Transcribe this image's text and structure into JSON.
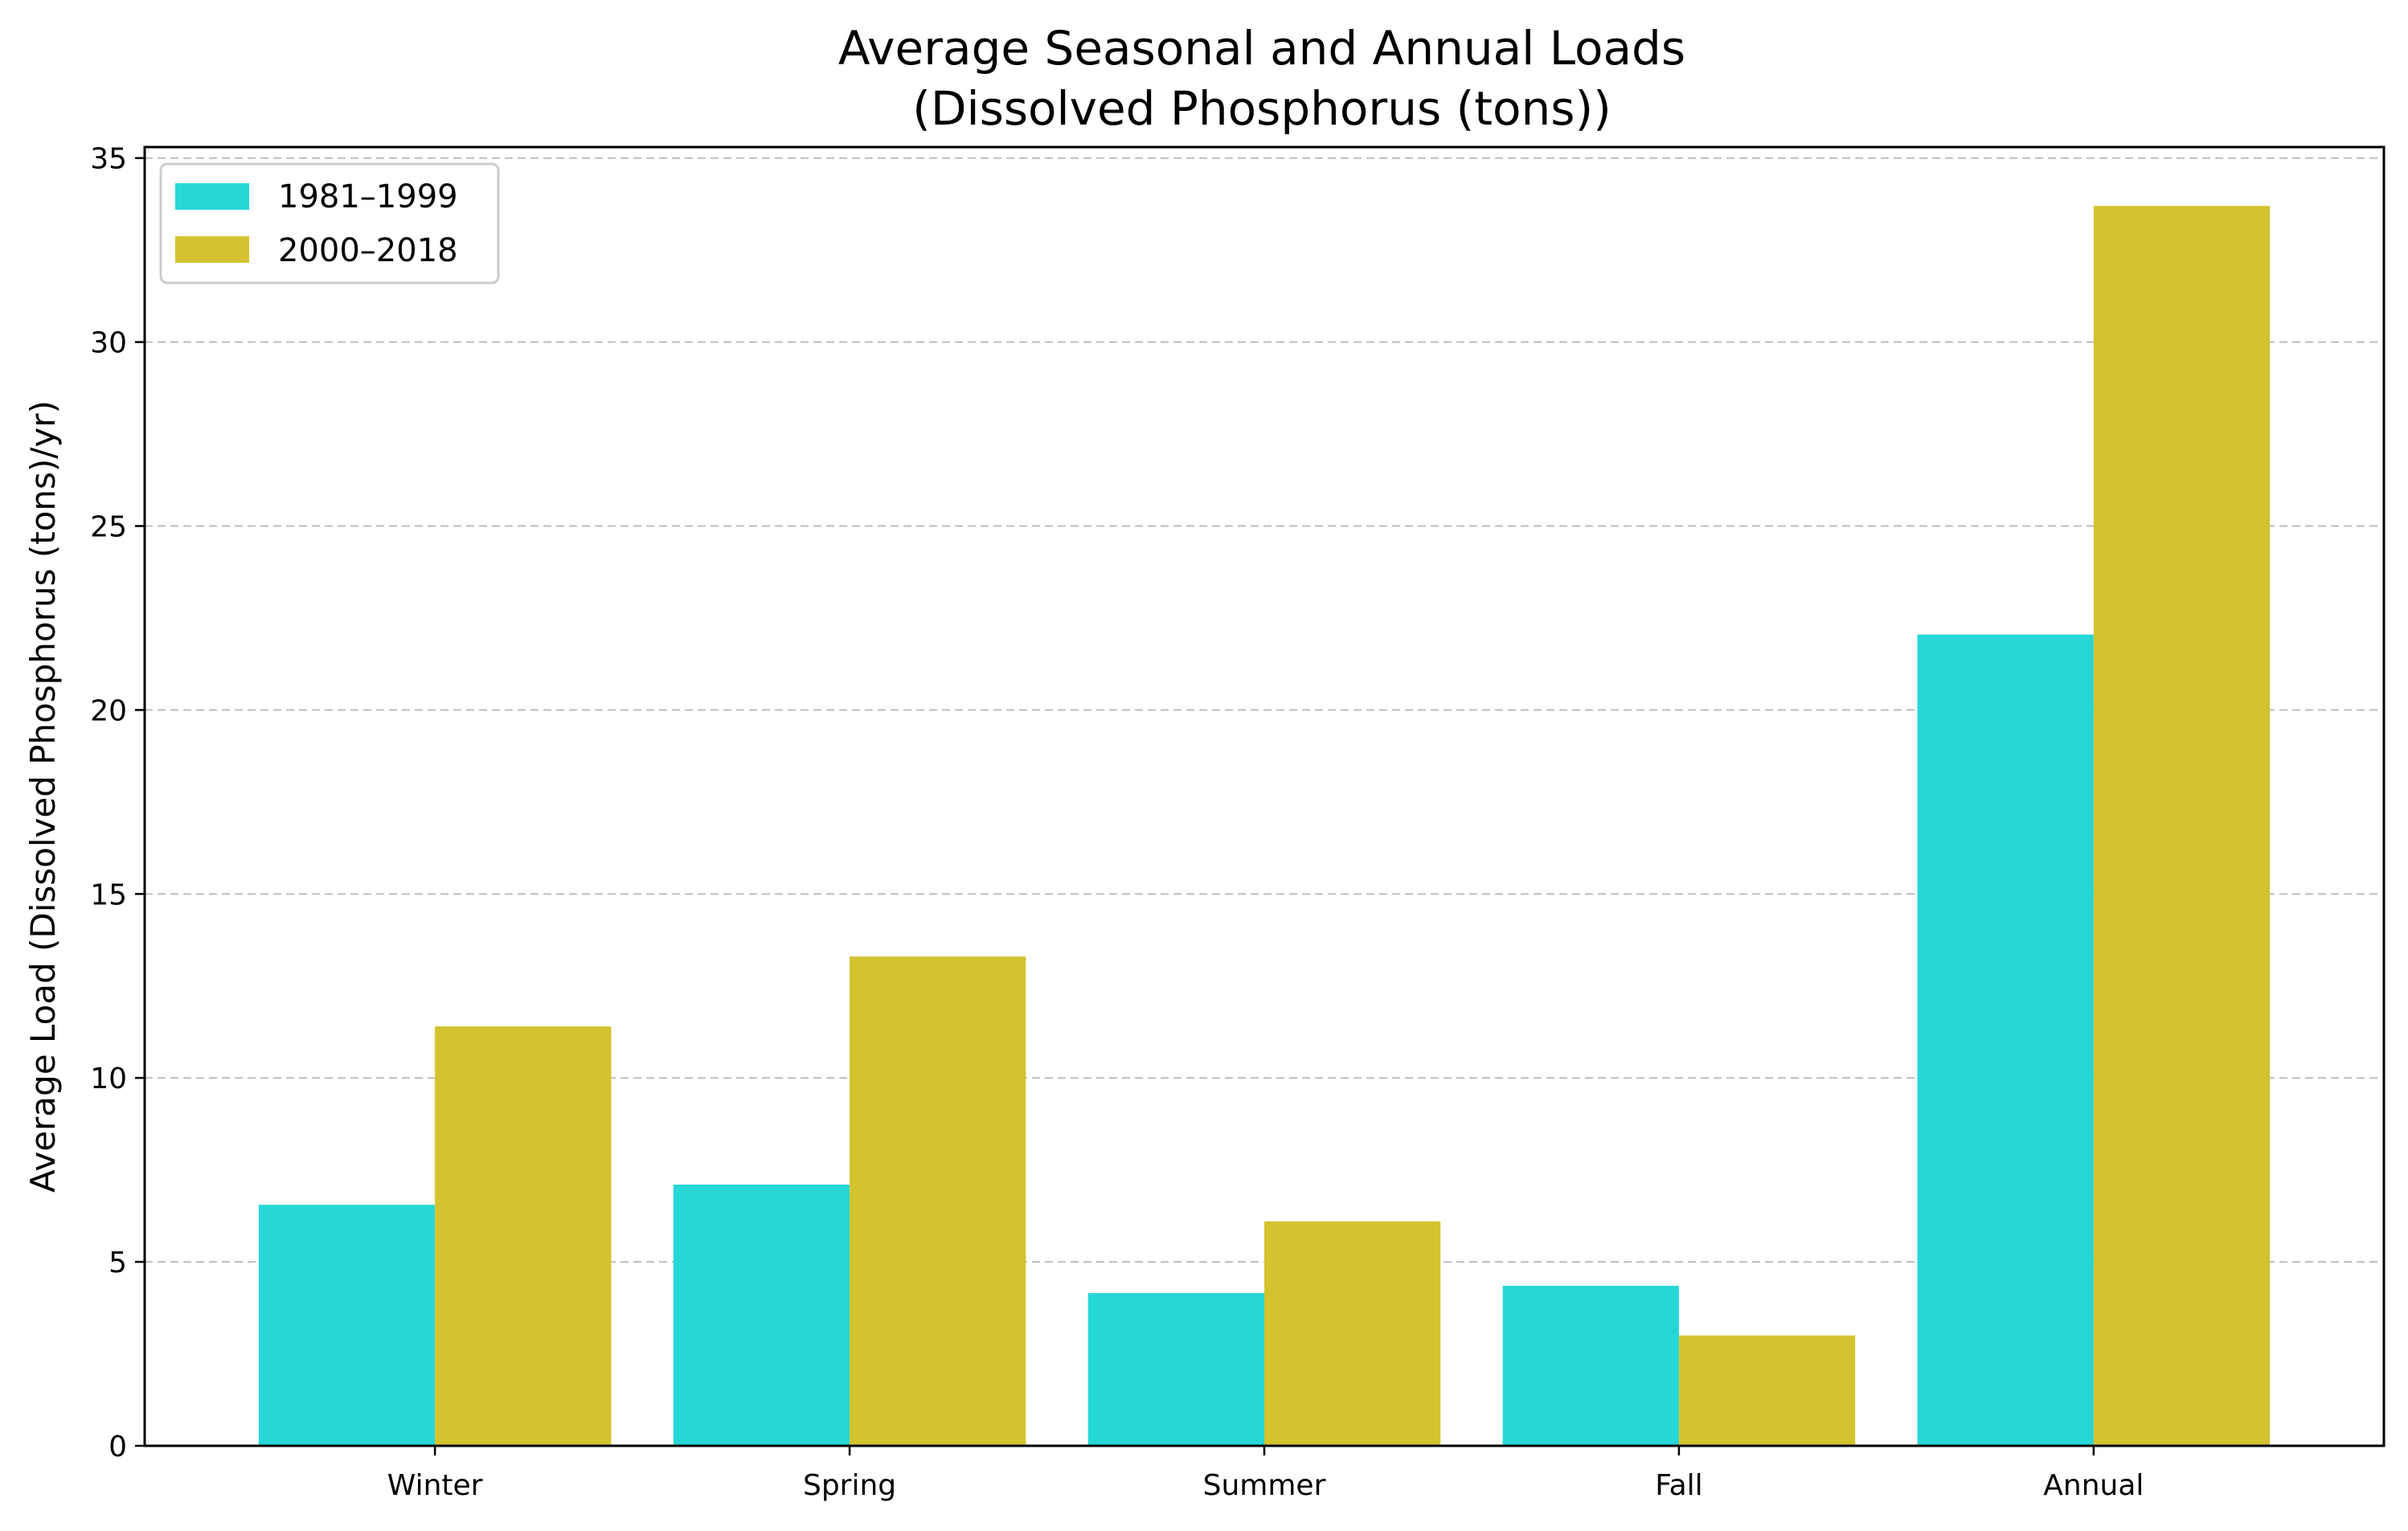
{
  "chart_data": {
    "type": "bar",
    "title_line1": "Average Seasonal and Annual Loads",
    "title_line2": "(Dissolved Phosphorus (tons))",
    "xlabel": "",
    "ylabel": "Average Load (Dissolved Phosphorus (tons)/yr)",
    "categories": [
      "Winter",
      "Spring",
      "Summer",
      "Fall",
      "Annual"
    ],
    "series": [
      {
        "name": "1981–1999",
        "color": "#26d7d6",
        "values": [
          6.55,
          7.1,
          4.15,
          4.35,
          22.05
        ]
      },
      {
        "name": "2000–2018",
        "color": "#d3c32f",
        "values": [
          11.4,
          13.3,
          6.1,
          3.0,
          33.7
        ]
      }
    ],
    "ylim": [
      0,
      35.3
    ],
    "yticks": [
      0,
      5,
      10,
      15,
      20,
      25,
      30,
      35
    ],
    "ytick_labels": [
      "0",
      "5",
      "10",
      "15",
      "20",
      "25",
      "30",
      "35"
    ],
    "grid": true,
    "grid_axis": "y",
    "legend_position": "top-left"
  }
}
